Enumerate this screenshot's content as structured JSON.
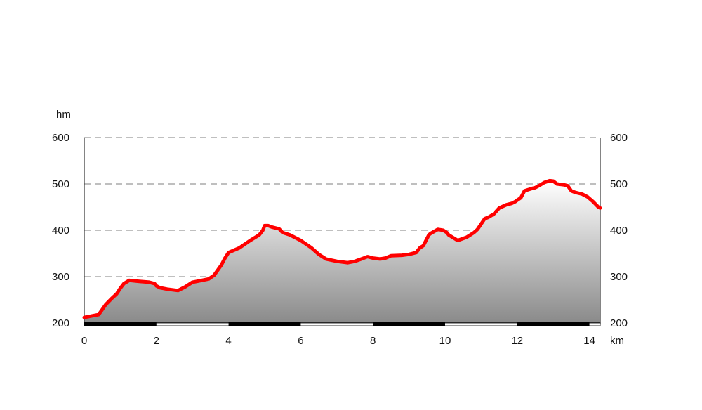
{
  "chart_data": {
    "type": "area",
    "y_unit": "hm",
    "x_unit": "km",
    "xlim": [
      0,
      14.3
    ],
    "ylim": [
      200,
      600
    ],
    "x_ticks": [
      "0",
      "2",
      "4",
      "6",
      "8",
      "10",
      "12",
      "14"
    ],
    "y_ticks": [
      "200",
      "300",
      "400",
      "500",
      "600"
    ],
    "grid": "horizontal dashed",
    "colors": {
      "line": "#ff0000",
      "fill_top": "#ffffff",
      "fill_bottom": "#8a8a8a",
      "grid": "#999999"
    },
    "series": [
      {
        "x": [
          0,
          0.2,
          0.4,
          0.6,
          0.75,
          0.9,
          1.0,
          1.1,
          1.25,
          1.5,
          1.8,
          1.95,
          2.0,
          2.1,
          2.3,
          2.6,
          2.8,
          3.0,
          3.2,
          3.45,
          3.6,
          3.8,
          3.9,
          4.0,
          4.3,
          4.6,
          4.85,
          4.95,
          5.0,
          5.1,
          5.2,
          5.4,
          5.5,
          5.7,
          6.0,
          6.3,
          6.5,
          6.7,
          7.0,
          7.3,
          7.5,
          7.75,
          7.85,
          8.0,
          8.2,
          8.35,
          8.5,
          8.8,
          9.0,
          9.2,
          9.3,
          9.4,
          9.55,
          9.6,
          9.8,
          9.95,
          10.05,
          10.1,
          10.35,
          10.6,
          10.8,
          10.9,
          11.1,
          11.2,
          11.35,
          11.5,
          11.7,
          11.85,
          11.95,
          12.0,
          12.1,
          12.2,
          12.4,
          12.5,
          12.6,
          12.75,
          12.9,
          13.0,
          13.1,
          13.3,
          13.4,
          13.5,
          13.6,
          13.8,
          13.95,
          14.1,
          14.25,
          14.3
        ],
        "y": [
          212,
          215,
          218,
          240,
          252,
          263,
          275,
          285,
          292,
          290,
          288,
          285,
          280,
          276,
          273,
          270,
          278,
          288,
          291,
          295,
          303,
          325,
          340,
          352,
          362,
          378,
          390,
          400,
          410,
          410,
          407,
          403,
          395,
          390,
          378,
          362,
          348,
          338,
          333,
          330,
          333,
          340,
          343,
          340,
          338,
          340,
          345,
          346,
          348,
          352,
          362,
          367,
          390,
          393,
          402,
          400,
          395,
          390,
          378,
          385,
          395,
          402,
          425,
          428,
          435,
          448,
          455,
          458,
          462,
          465,
          470,
          485,
          490,
          492,
          496,
          503,
          507,
          506,
          500,
          498,
          496,
          485,
          482,
          478,
          472,
          462,
          450,
          448
        ]
      }
    ]
  }
}
